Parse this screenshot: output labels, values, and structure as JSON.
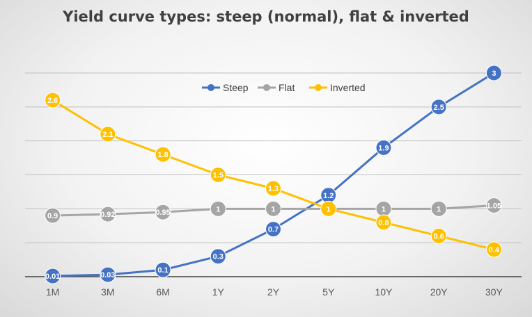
{
  "chart_data": {
    "type": "line",
    "title": "Yield curve types: steep (normal), flat & inverted",
    "categories": [
      "1M",
      "3M",
      "6M",
      "1Y",
      "2Y",
      "5Y",
      "10Y",
      "20Y",
      "30Y"
    ],
    "ylim": [
      0,
      3
    ],
    "grid": true,
    "legend_position": "top-center",
    "series": [
      {
        "name": "Steep",
        "color": "#4472C4",
        "values": [
          0.01,
          0.03,
          0.1,
          0.3,
          0.7,
          1.2,
          1.9,
          2.5,
          3
        ],
        "labels": [
          "0.01",
          "0.03",
          "0.1",
          "0.3",
          "0.7",
          "1.2",
          "1.9",
          "2.5",
          "3"
        ]
      },
      {
        "name": "Flat",
        "color": "#A5A5A5",
        "values": [
          0.9,
          0.92,
          0.95,
          1,
          1,
          1,
          1,
          1,
          1.05
        ],
        "labels": [
          "0.9",
          "0.92",
          "0.95",
          "1",
          "1",
          "1",
          "1",
          "1",
          "1.05"
        ]
      },
      {
        "name": "Inverted",
        "color": "#FFC000",
        "values": [
          2.6,
          2.1,
          1.8,
          1.5,
          1.3,
          1,
          0.8,
          0.6,
          0.4
        ],
        "labels": [
          "2.6",
          "2.1",
          "1.8",
          "1.5",
          "1.3",
          "1",
          "0.8",
          "0.6",
          "0.4"
        ]
      }
    ]
  }
}
